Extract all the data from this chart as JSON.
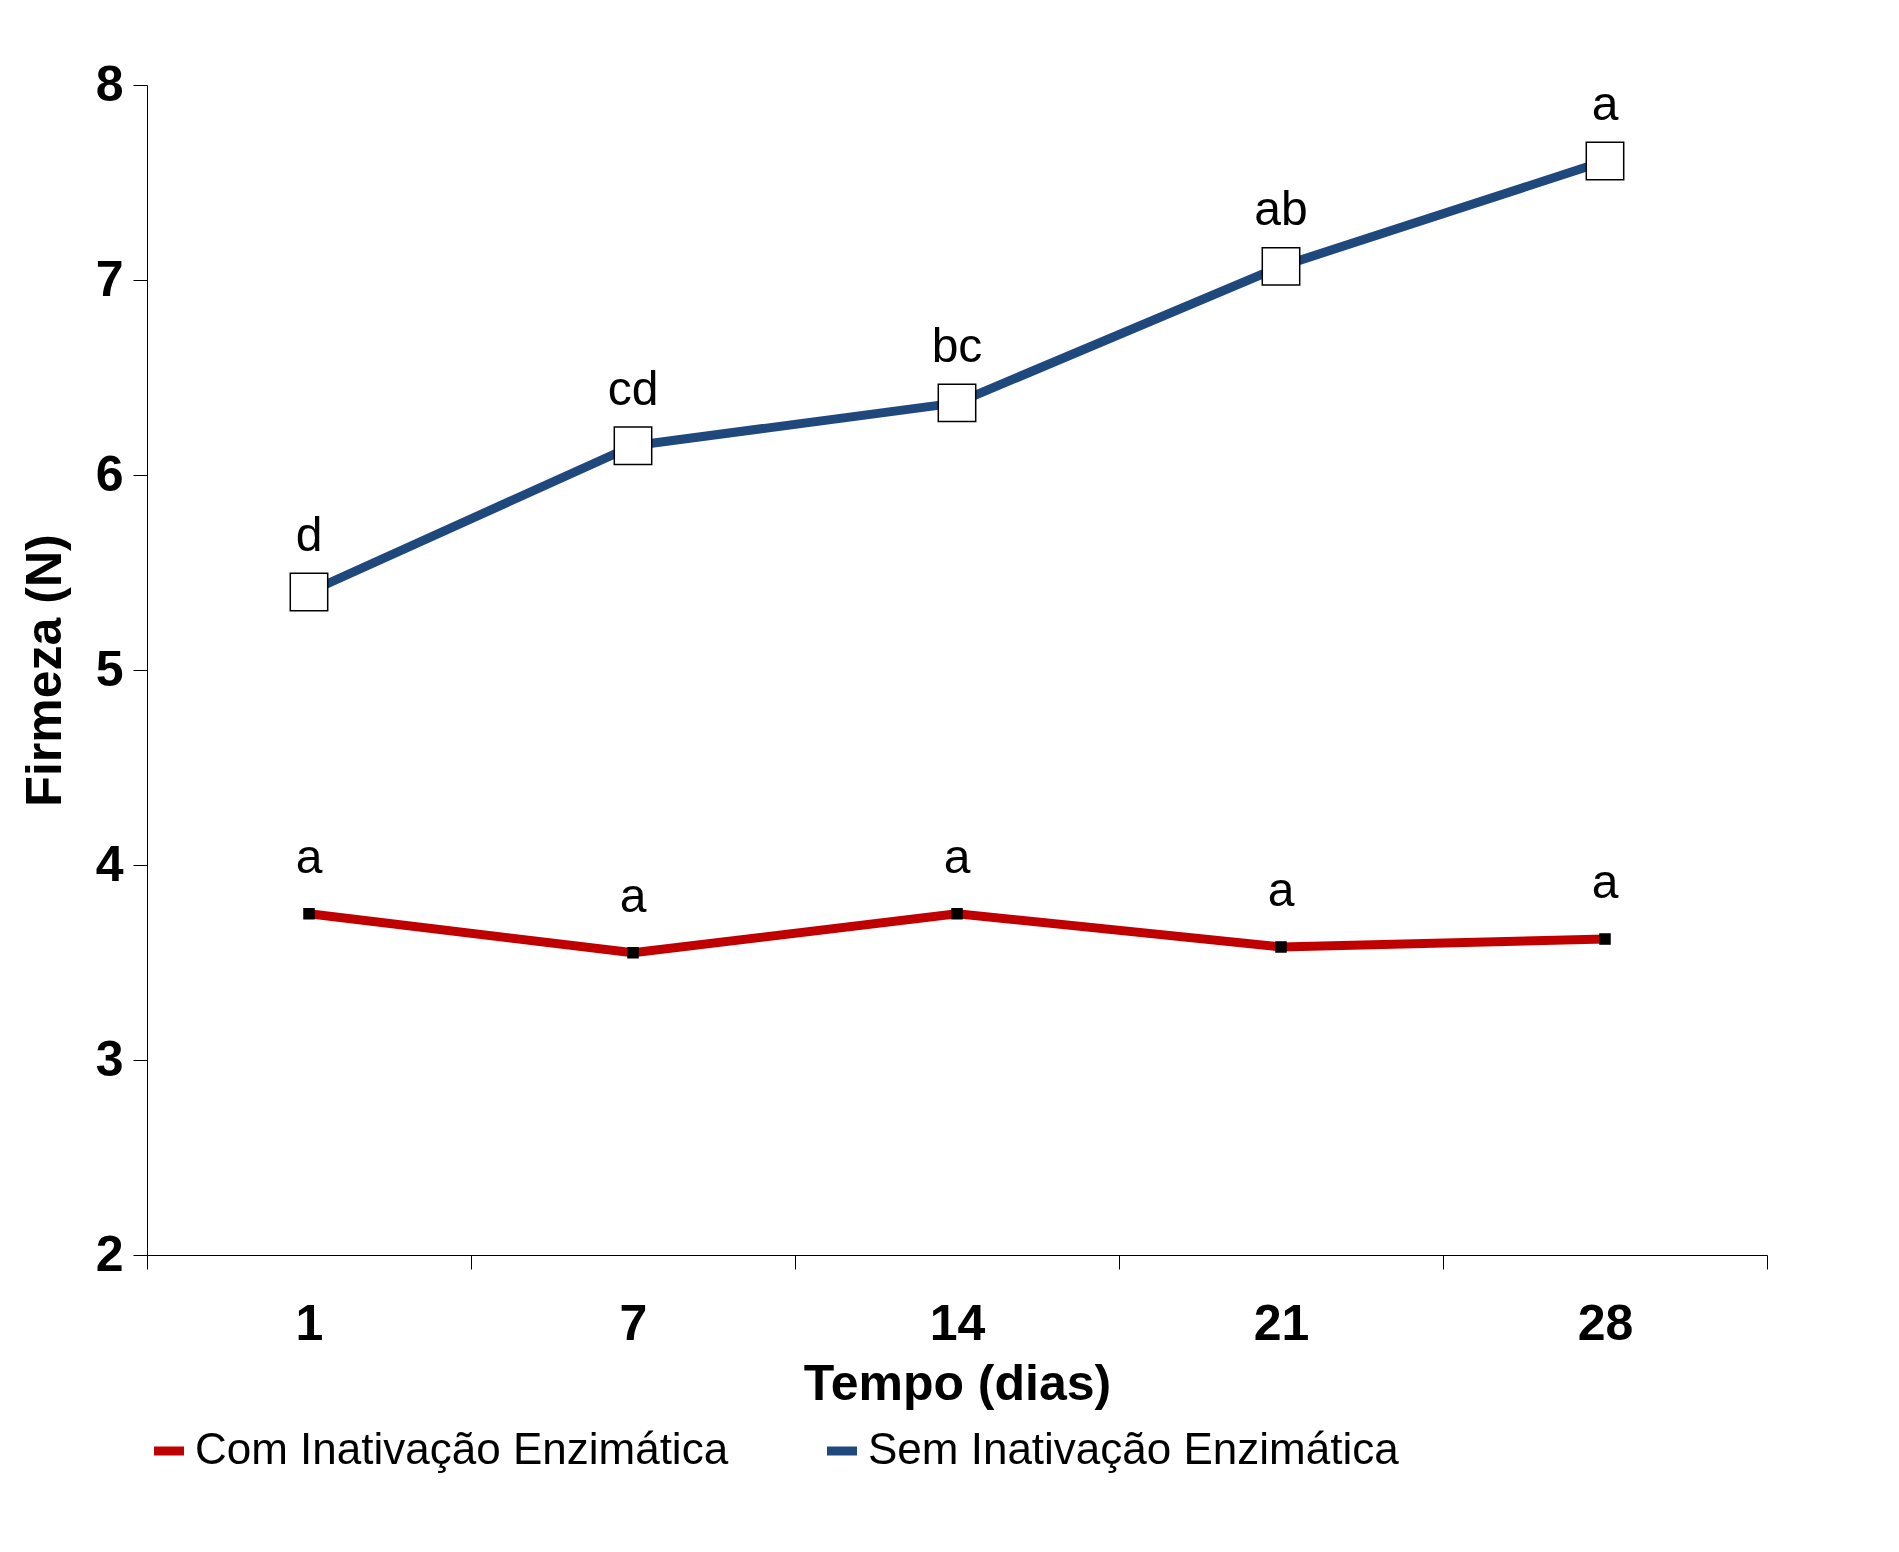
{
  "chart_data": {
    "type": "line",
    "xlabel": "Tempo (dias)",
    "ylabel": "Firmeza (N)",
    "categories": [
      "1",
      "7",
      "14",
      "21",
      "28"
    ],
    "series": [
      {
        "name": "Com Inativação Enzimática",
        "color": "#c00000",
        "values": [
          3.75,
          3.55,
          3.75,
          3.58,
          3.62
        ],
        "value_labels": [
          "a",
          "a",
          "a",
          "a",
          "a"
        ]
      },
      {
        "name": "Sem Inativação Enzimática",
        "color": "#1f497d",
        "values": [
          5.4,
          6.15,
          6.37,
          7.07,
          7.61
        ],
        "value_labels": [
          "d",
          "cd",
          "bc",
          "ab",
          "a"
        ]
      }
    ],
    "ylim": [
      2,
      8
    ],
    "yticks": [
      2,
      3,
      4,
      5,
      6,
      7,
      8
    ],
    "grid": false,
    "legend": "bottom",
    "marker": "square",
    "line_style": "solid"
  }
}
